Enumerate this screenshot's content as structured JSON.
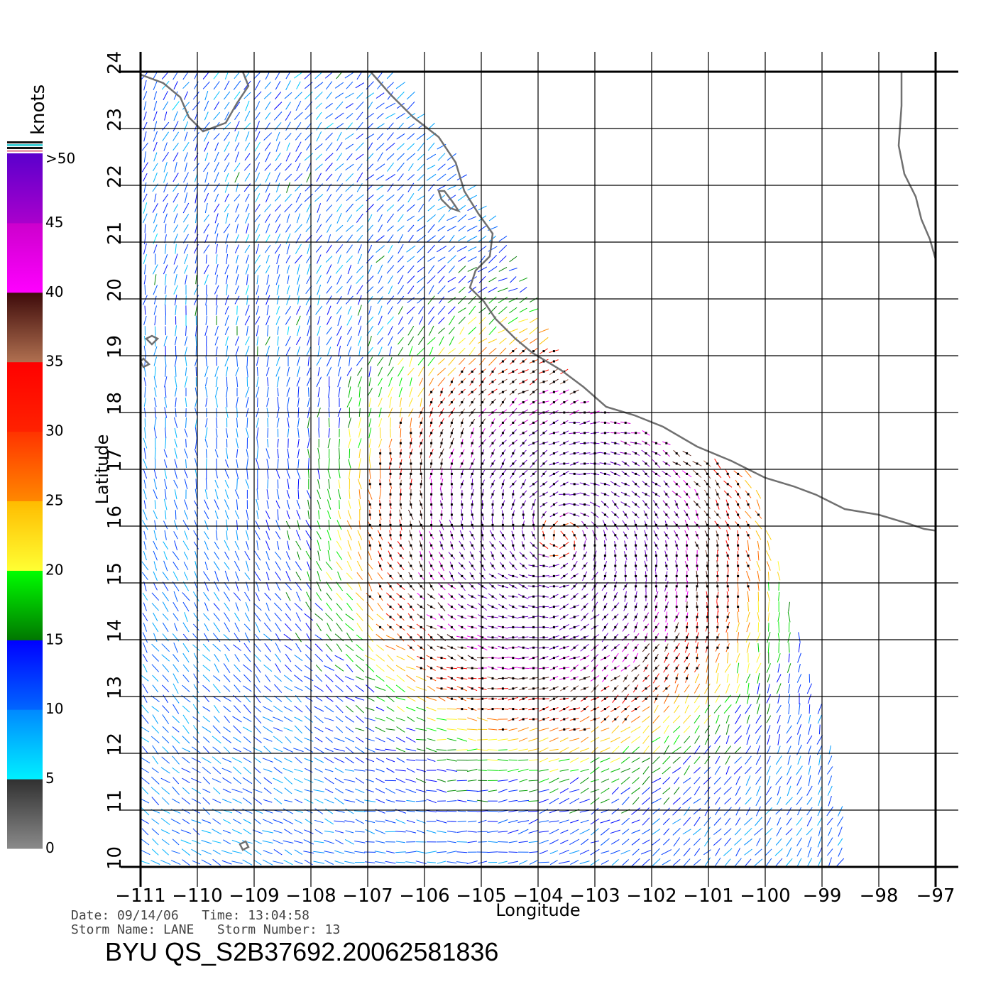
{
  "map": {
    "xlabel": "Longitude",
    "ylabel": "Latitude",
    "lon_range": [
      -111,
      -97
    ],
    "lat_range": [
      10,
      24
    ],
    "lon_ticks": [
      "−111",
      "−110",
      "−109",
      "−108",
      "−107",
      "−106",
      "−105",
      "−104",
      "−103",
      "−102",
      "−101",
      "−100",
      "−99",
      "−98",
      "−97"
    ],
    "lat_ticks": [
      "10",
      "11",
      "12",
      "13",
      "14",
      "15",
      "16",
      "17",
      "18",
      "19",
      "20",
      "21",
      "22",
      "23",
      "24"
    ],
    "grid": true,
    "coastline_color": "#707070",
    "coastline": [
      [
        -111.0,
        23.95
      ],
      [
        -110.6,
        23.8
      ],
      [
        -110.3,
        23.55
      ],
      [
        -110.15,
        23.2
      ],
      [
        -109.9,
        22.95
      ],
      [
        -109.5,
        23.1
      ],
      [
        -109.3,
        23.45
      ],
      [
        -109.1,
        23.75
      ],
      [
        -109.2,
        24.0
      ]
    ],
    "coastline_main": [
      [
        -106.95,
        24.0
      ],
      [
        -106.6,
        23.6
      ],
      [
        -106.2,
        23.2
      ],
      [
        -105.75,
        22.85
      ],
      [
        -105.45,
        22.4
      ],
      [
        -105.3,
        21.9
      ],
      [
        -105.05,
        21.5
      ],
      [
        -104.8,
        21.15
      ],
      [
        -104.85,
        20.75
      ],
      [
        -105.1,
        20.5
      ],
      [
        -105.2,
        20.2
      ],
      [
        -104.95,
        19.95
      ],
      [
        -104.75,
        19.65
      ],
      [
        -104.4,
        19.3
      ],
      [
        -104.1,
        19.05
      ],
      [
        -103.6,
        18.75
      ],
      [
        -103.2,
        18.45
      ],
      [
        -102.8,
        18.1
      ],
      [
        -102.3,
        17.95
      ],
      [
        -101.8,
        17.75
      ],
      [
        -101.2,
        17.4
      ],
      [
        -100.6,
        17.15
      ],
      [
        -100.0,
        16.85
      ],
      [
        -99.5,
        16.7
      ],
      [
        -99.1,
        16.55
      ],
      [
        -98.6,
        16.3
      ],
      [
        -98.0,
        16.2
      ],
      [
        -97.5,
        16.05
      ],
      [
        -97.2,
        15.95
      ],
      [
        -97.0,
        15.92
      ]
    ],
    "coastline_gulf": [
      [
        -97.6,
        24.0
      ],
      [
        -97.6,
        23.4
      ],
      [
        -97.65,
        22.7
      ],
      [
        -97.55,
        22.2
      ],
      [
        -97.35,
        21.8
      ],
      [
        -97.25,
        21.4
      ],
      [
        -97.1,
        21.05
      ],
      [
        -97.0,
        20.7
      ]
    ],
    "islands": [
      {
        "name": "",
        "points": [
          [
            -105.7,
            21.75
          ],
          [
            -105.55,
            21.6
          ],
          [
            -105.4,
            21.55
          ],
          [
            -105.5,
            21.7
          ],
          [
            -105.65,
            21.9
          ],
          [
            -105.75,
            21.9
          ]
        ]
      },
      {
        "name": "",
        "points": [
          [
            -110.8,
            19.2
          ],
          [
            -110.7,
            19.3
          ],
          [
            -110.8,
            19.35
          ],
          [
            -110.9,
            19.3
          ]
        ]
      },
      {
        "name": "",
        "points": [
          [
            -110.95,
            18.8
          ],
          [
            -110.85,
            18.85
          ],
          [
            -110.95,
            18.95
          ],
          [
            -111.0,
            18.9
          ]
        ]
      },
      {
        "name": "",
        "points": [
          [
            -109.2,
            10.3
          ],
          [
            -109.1,
            10.35
          ],
          [
            -109.15,
            10.45
          ],
          [
            -109.25,
            10.4
          ]
        ]
      }
    ]
  },
  "wind_field": {
    "storm_center": [
      -103.6,
      15.8
    ],
    "swath": [
      [
        -111,
        24
      ],
      [
        -106.5,
        24
      ],
      [
        -104.5,
        21
      ],
      [
        -103.4,
        18.4
      ],
      [
        -101.4,
        17.3
      ],
      [
        -100.2,
        16.9
      ],
      [
        -99.6,
        14.8
      ],
      [
        -98.9,
        12.3
      ],
      [
        -98.5,
        10.0
      ],
      [
        -111,
        10.0
      ]
    ]
  },
  "legend": {
    "unit": "knots",
    "ticks": [
      ">50",
      "45",
      "40",
      "35",
      "30",
      "25",
      "20",
      "15",
      "10",
      "5",
      "0"
    ],
    "stops": [
      {
        "from": 0,
        "to": 5,
        "top": "#303030",
        "bottom": "#8a8a8a"
      },
      {
        "from": 5,
        "to": 10,
        "top": "#0088ff",
        "bottom": "#00f0ff"
      },
      {
        "from": 10,
        "to": 15,
        "top": "#0000ff",
        "bottom": "#0066ff"
      },
      {
        "from": 15,
        "to": 20,
        "top": "#00ff00",
        "bottom": "#007700"
      },
      {
        "from": 20,
        "to": 25,
        "top": "#ffbb00",
        "bottom": "#ffff33"
      },
      {
        "from": 25,
        "to": 30,
        "top": "#ff3300",
        "bottom": "#ff8800"
      },
      {
        "from": 30,
        "to": 35,
        "top": "#ff0000",
        "bottom": "#ff2200"
      },
      {
        "from": 35,
        "to": 40,
        "top": "#3d0a0a",
        "bottom": "#b07050"
      },
      {
        "from": 40,
        "to": 45,
        "top": "#cc00cc",
        "bottom": "#ff00ff"
      },
      {
        "from": 45,
        "to": 50,
        "top": "#5a00cc",
        "bottom": "#aa00cc"
      }
    ]
  },
  "caption": {
    "line1": "Date: 09/14/06   Time: 13:04:58",
    "line2": "Storm Name: LANE   Storm Number: 13",
    "product": "BYU QS_S2B37692.20062581836"
  }
}
